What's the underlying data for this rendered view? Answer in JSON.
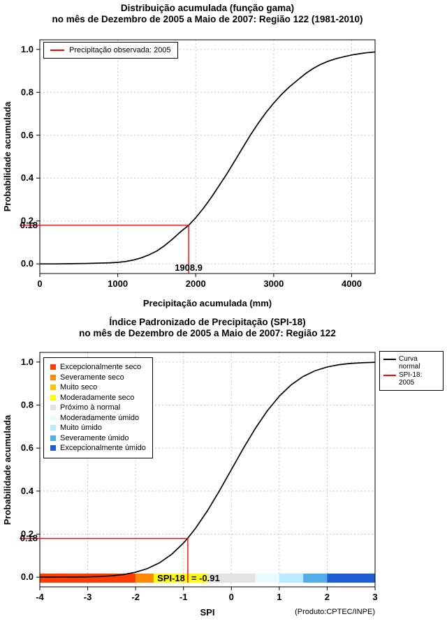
{
  "chart_data": [
    {
      "type": "line",
      "title": "Distribuição acumulada (função gama)",
      "subtitle": "no mês de Dezembro de 2005 a Maio de 2007: Região 122 (1981-2010)",
      "xlabel": "Precipitação acumulada (mm)",
      "ylabel": "Probabilidade acumulada",
      "xlim": [
        0,
        4300
      ],
      "ylim": [
        -0.045,
        1.045
      ],
      "x_ticks": [
        0,
        1000,
        2000,
        3000,
        4000
      ],
      "x_tick_labels": [
        "0",
        "1000",
        "2000",
        "3000",
        "4000"
      ],
      "y_ticks": [
        0.0,
        0.2,
        0.4,
        0.6,
        0.8,
        1.0
      ],
      "y_tick_labels": [
        "0.0",
        "0.2",
        "0.4",
        "0.6",
        "0.8",
        "1.0"
      ],
      "grid": true,
      "legend": {
        "position": "top-left",
        "items": [
          {
            "label": "Precipitação observada: 2005",
            "color": "#ff0000"
          }
        ]
      },
      "series": [
        {
          "name": "Distribuição gama acumulada",
          "color": "#000000",
          "x": [
            0,
            200,
            400,
            600,
            800,
            900,
            1000,
            1100,
            1200,
            1300,
            1400,
            1500,
            1600,
            1700,
            1800,
            1908.9,
            2000,
            2100,
            2200,
            2300,
            2400,
            2500,
            2600,
            2700,
            2800,
            2900,
            3000,
            3100,
            3200,
            3300,
            3400,
            3500,
            3600,
            3700,
            3800,
            3900,
            4000,
            4100,
            4200,
            4300
          ],
          "y": [
            0,
            0,
            0.001,
            0.002,
            0.004,
            0.005,
            0.007,
            0.011,
            0.018,
            0.028,
            0.042,
            0.06,
            0.085,
            0.115,
            0.148,
            0.18,
            0.215,
            0.26,
            0.31,
            0.365,
            0.42,
            0.48,
            0.54,
            0.6,
            0.655,
            0.705,
            0.75,
            0.79,
            0.825,
            0.855,
            0.885,
            0.91,
            0.93,
            0.945,
            0.957,
            0.966,
            0.974,
            0.98,
            0.985,
            0.988
          ]
        }
      ],
      "annotation": {
        "x": 1908.9,
        "y": 0.18,
        "x_label": "1908.9",
        "y_label": "0.18",
        "color": "#ff0000"
      }
    },
    {
      "type": "line",
      "title": "Índice Padronizado de Precipitação (SPI-18)",
      "subtitle": "no mês de Dezembro de 2005 a Maio de 2007: Região 122",
      "xlabel": "SPI",
      "ylabel": "Probabilidade acumulada",
      "xlim": [
        -4,
        3
      ],
      "ylim": [
        -0.045,
        1.045
      ],
      "x_ticks": [
        -4,
        -3,
        -2,
        -1,
        0,
        1,
        2,
        3
      ],
      "x_tick_labels": [
        "-4",
        "-3",
        "-2",
        "-1",
        "0",
        "1",
        "2",
        "3"
      ],
      "y_ticks": [
        0.0,
        0.2,
        0.4,
        0.6,
        0.8,
        1.0
      ],
      "y_tick_labels": [
        "0.0",
        "0.2",
        "0.4",
        "0.6",
        "0.8",
        "1.0"
      ],
      "grid": true,
      "legend": {
        "position": "top-right-outside",
        "items": [
          {
            "label": "Curva normal",
            "color": "#000000"
          },
          {
            "label": "SPI-18: 2005",
            "color": "#ff0000"
          }
        ]
      },
      "categories": [
        {
          "label": "Excepcionalmente seco",
          "color": "#ff3d00",
          "from": -4,
          "to": -2
        },
        {
          "label": "Severamente seco",
          "color": "#ff8a00",
          "from": -2,
          "to": -1.5
        },
        {
          "label": "Muito seco",
          "color": "#ffc100",
          "from": -1.5,
          "to": -1
        },
        {
          "label": "Moderadamente seco",
          "color": "#ffff00",
          "from": -1,
          "to": -0.5
        },
        {
          "label": "Próximo à normal",
          "color": "#e3e3e3",
          "from": -0.5,
          "to": 0.5
        },
        {
          "label": "Moderadamente úmido",
          "color": "#eafbff",
          "from": 0.5,
          "to": 1
        },
        {
          "label": "Muito úmido",
          "color": "#b9ebff",
          "from": 1,
          "to": 1.5
        },
        {
          "label": "Severamente úmido",
          "color": "#52aee8",
          "from": 1.5,
          "to": 2
        },
        {
          "label": "Excepcionalmente úmido",
          "color": "#1d5fd2",
          "from": 2,
          "to": 3
        }
      ],
      "series": [
        {
          "name": "Curva normal",
          "color": "#000000",
          "x": [
            -4,
            -3.5,
            -3,
            -2.75,
            -2.5,
            -2.25,
            -2,
            -1.75,
            -1.5,
            -1.25,
            -1,
            -0.91,
            -0.75,
            -0.5,
            -0.25,
            0,
            0.25,
            0.5,
            0.75,
            1,
            1.25,
            1.5,
            1.75,
            2,
            2.25,
            2.5,
            2.75,
            3
          ],
          "y": [
            0.0,
            0.0002,
            0.0013,
            0.003,
            0.0062,
            0.0122,
            0.0228,
            0.0401,
            0.0668,
            0.1056,
            0.1587,
            0.1814,
            0.2266,
            0.3085,
            0.4013,
            0.5,
            0.5987,
            0.6915,
            0.7734,
            0.8413,
            0.8944,
            0.9332,
            0.9599,
            0.9772,
            0.9878,
            0.9938,
            0.997,
            0.9987
          ]
        }
      ],
      "annotation": {
        "x": -0.91,
        "y": 0.18,
        "y_label": "0.18",
        "color": "#ff0000",
        "bar_text_highlight": "SPI-18",
        "bar_text_rest": "= -0.91",
        "highlight_color": "#ffff00"
      },
      "footnote": "(Produto:CPTEC/INPE)"
    }
  ]
}
